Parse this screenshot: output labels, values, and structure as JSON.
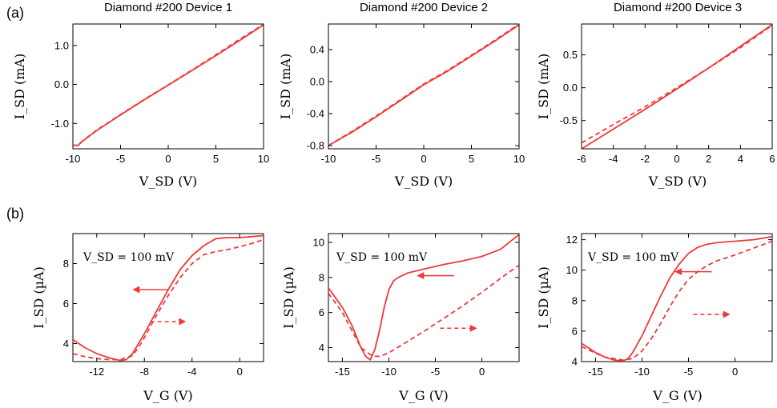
{
  "panel_labels": [
    "(a)",
    "(b)"
  ],
  "chart_data": [
    {
      "type": "line",
      "title": "Diamond #200 Device 1",
      "xlabel": "V_SD (V)",
      "ylabel": "I_SD (mA)",
      "xlim": [
        -10,
        10
      ],
      "ylim": [
        -1.65,
        1.55
      ],
      "xticks": [
        -10,
        -5,
        0,
        5,
        10
      ],
      "xtick_labels": [
        "-10",
        "-5",
        "0",
        "5",
        "10"
      ],
      "yticks": [
        -1,
        0,
        1
      ],
      "ytick_labels": [
        "-1.0",
        "0.0",
        "1.0"
      ],
      "series": [
        {
          "style": "solid",
          "x": [
            -10,
            -9.5,
            -9,
            -7.5,
            -5,
            -2.5,
            0,
            2.5,
            5,
            7.5,
            10
          ],
          "y": [
            -1.55,
            -1.57,
            -1.46,
            -1.18,
            -0.78,
            -0.39,
            -0.02,
            0.36,
            0.74,
            1.13,
            1.53
          ]
        },
        {
          "style": "dashed",
          "x": [
            -10,
            -9.5,
            -9,
            -7.5,
            -5,
            -2.5,
            0,
            2.5,
            5,
            7.5,
            10
          ],
          "y": [
            -1.56,
            -1.56,
            -1.45,
            -1.17,
            -0.77,
            -0.38,
            -0.01,
            0.37,
            0.76,
            1.16,
            1.54
          ]
        }
      ]
    },
    {
      "type": "line",
      "title": "Diamond #200 Device 2",
      "xlabel": "V_SD (V)",
      "ylabel": "I_SD (mA)",
      "xlim": [
        -10,
        10
      ],
      "ylim": [
        -0.84,
        0.72
      ],
      "xticks": [
        -10,
        -5,
        0,
        5,
        10
      ],
      "xtick_labels": [
        "-10",
        "-5",
        "0",
        "5",
        "10"
      ],
      "yticks": [
        -0.8,
        -0.4,
        0,
        0.4
      ],
      "ytick_labels": [
        "-0.8",
        "-0.4",
        "0.0",
        "0.4"
      ],
      "series": [
        {
          "style": "solid",
          "x": [
            -10,
            -7.5,
            -5,
            -2.5,
            0,
            2.5,
            5,
            7.5,
            10
          ],
          "y": [
            -0.8,
            -0.63,
            -0.44,
            -0.24,
            -0.04,
            0.13,
            0.32,
            0.51,
            0.71
          ]
        },
        {
          "style": "dashed",
          "x": [
            -10,
            -7.5,
            -5,
            -2.5,
            0,
            2.5,
            5,
            7.5,
            10
          ],
          "y": [
            -0.8,
            -0.62,
            -0.43,
            -0.23,
            -0.03,
            0.14,
            0.33,
            0.52,
            0.72
          ]
        }
      ]
    },
    {
      "type": "line",
      "title": "Diamond #200 Device 3",
      "xlabel": "V_SD (V)",
      "ylabel": "I_SD (mA)",
      "xlim": [
        -6,
        6
      ],
      "ylim": [
        -0.93,
        0.97
      ],
      "xticks": [
        -6,
        -4,
        -2,
        0,
        2,
        4,
        6
      ],
      "xtick_labels": [
        "-6",
        "-4",
        "-2",
        "0",
        "2",
        "4",
        "6"
      ],
      "yticks": [
        -0.5,
        0,
        0.5
      ],
      "ytick_labels": [
        "-0.5",
        "0.0",
        "0.5"
      ],
      "series": [
        {
          "style": "solid",
          "x": [
            -6,
            -4,
            -2,
            0,
            2,
            4,
            6
          ],
          "y": [
            -0.93,
            -0.63,
            -0.33,
            -0.02,
            0.3,
            0.63,
            0.96
          ]
        },
        {
          "style": "dashed",
          "x": [
            -6,
            -4,
            -2,
            0,
            2,
            4,
            6
          ],
          "y": [
            -0.84,
            -0.56,
            -0.29,
            0.0,
            0.3,
            0.61,
            0.95
          ]
        }
      ]
    },
    {
      "type": "line",
      "title": "",
      "xlabel": "V_G (V)",
      "ylabel": "I_SD (µA)",
      "annotation": "V_SD = 100 mV",
      "xlim": [
        -14,
        2
      ],
      "ylim": [
        3.1,
        9.5
      ],
      "xticks": [
        -12,
        -8,
        -4,
        0
      ],
      "xtick_labels": [
        "-12",
        "-8",
        "-4",
        "0"
      ],
      "yticks": [
        4,
        6,
        8
      ],
      "ytick_labels": [
        "4",
        "6",
        "8"
      ],
      "arrows": [
        {
          "direction": "left",
          "style": "solid",
          "x": [
            -6,
            -9
          ],
          "y": 6.7
        },
        {
          "direction": "right",
          "style": "dashed",
          "x": [
            -7.5,
            -4.5
          ],
          "y": 5.1
        }
      ],
      "series": [
        {
          "style": "solid",
          "x": [
            -14,
            -13,
            -12,
            -11,
            -10,
            -9.5,
            -9,
            -8,
            -7,
            -6,
            -5,
            -4,
            -3,
            -2,
            -1,
            0,
            1,
            2
          ],
          "y": [
            4.2,
            3.8,
            3.5,
            3.3,
            3.15,
            3.2,
            3.5,
            4.5,
            5.6,
            6.7,
            7.7,
            8.4,
            8.9,
            9.25,
            9.3,
            9.3,
            9.35,
            9.4
          ]
        },
        {
          "style": "dashed",
          "x": [
            -14,
            -13,
            -12,
            -11,
            -10,
            -9,
            -8.5,
            -8,
            -7,
            -6,
            -5,
            -4,
            -3,
            -2,
            -1,
            0,
            1,
            2
          ],
          "y": [
            3.5,
            3.35,
            3.25,
            3.2,
            3.2,
            3.4,
            3.8,
            4.3,
            5.4,
            6.4,
            7.3,
            8.0,
            8.45,
            8.6,
            8.7,
            8.85,
            9.0,
            9.2
          ]
        }
      ]
    },
    {
      "type": "line",
      "title": "",
      "xlabel": "V_G (V)",
      "ylabel": "I_SD (µA)",
      "annotation": "V_SD = 100 mV",
      "xlim": [
        -16.5,
        4
      ],
      "ylim": [
        3.2,
        10.5
      ],
      "xticks": [
        -15,
        -10,
        -5,
        0
      ],
      "xtick_labels": [
        "-15",
        "-10",
        "-5",
        "0"
      ],
      "yticks": [
        4,
        6,
        8,
        10
      ],
      "ytick_labels": [
        "4",
        "6",
        "8",
        "10"
      ],
      "arrows": [
        {
          "direction": "left",
          "style": "solid",
          "x": [
            -3,
            -7
          ],
          "y": 8.1
        },
        {
          "direction": "right",
          "style": "dashed",
          "x": [
            -4.5,
            -0.5
          ],
          "y": 5.1
        }
      ],
      "series": [
        {
          "style": "solid",
          "x": [
            -16.5,
            -15,
            -14,
            -13,
            -12.5,
            -12,
            -11.5,
            -11,
            -10.5,
            -10,
            -9.5,
            -9,
            -8,
            -6,
            -4,
            -2,
            0,
            2,
            4
          ],
          "y": [
            7.4,
            6.3,
            5.3,
            4.0,
            3.5,
            3.3,
            3.9,
            5.0,
            6.3,
            7.3,
            7.8,
            8.0,
            8.25,
            8.5,
            8.75,
            8.95,
            9.2,
            9.6,
            10.45
          ]
        },
        {
          "style": "dashed",
          "x": [
            -16.5,
            -15,
            -14,
            -13,
            -12,
            -11.5,
            -11,
            -10,
            -8,
            -6,
            -4,
            -2,
            0,
            2,
            4
          ],
          "y": [
            7.1,
            6.0,
            5.0,
            4.0,
            3.6,
            3.5,
            3.5,
            3.7,
            4.35,
            5.0,
            5.7,
            6.4,
            7.15,
            7.95,
            8.7
          ]
        }
      ]
    },
    {
      "type": "line",
      "title": "",
      "xlabel": "V_G (V)",
      "ylabel": "I_SD (µA)",
      "annotation": "V_SD = 100 mV",
      "xlim": [
        -16.5,
        4
      ],
      "ylim": [
        4.0,
        12.4
      ],
      "xticks": [
        -15,
        -10,
        -5,
        0
      ],
      "xtick_labels": [
        "-15",
        "-10",
        "-5",
        "0"
      ],
      "yticks": [
        4,
        6,
        8,
        10,
        12
      ],
      "ytick_labels": [
        "4",
        "6",
        "8",
        "10",
        "12"
      ],
      "arrows": [
        {
          "direction": "left",
          "style": "solid",
          "x": [
            -2.5,
            -6.5
          ],
          "y": 9.9
        },
        {
          "direction": "right",
          "style": "dashed",
          "x": [
            -4.5,
            -0.5
          ],
          "y": 7.1
        }
      ],
      "series": [
        {
          "style": "solid",
          "x": [
            -16.5,
            -15,
            -14,
            -13,
            -12,
            -11.5,
            -11,
            -10,
            -9,
            -8,
            -7,
            -6,
            -5,
            -4,
            -3,
            -2,
            0,
            2,
            4
          ],
          "y": [
            5.2,
            4.6,
            4.3,
            4.1,
            4.05,
            4.2,
            4.6,
            5.7,
            7.0,
            8.3,
            9.5,
            10.4,
            11.1,
            11.5,
            11.7,
            11.8,
            11.9,
            12.0,
            12.2
          ]
        },
        {
          "style": "dashed",
          "x": [
            -16.5,
            -15,
            -14,
            -13,
            -12,
            -11,
            -10,
            -9,
            -8,
            -7,
            -6,
            -5,
            -4,
            -3,
            -2,
            -1,
            0,
            2,
            4
          ],
          "y": [
            5.0,
            4.55,
            4.3,
            4.2,
            4.1,
            4.2,
            4.7,
            5.5,
            6.5,
            7.6,
            8.6,
            9.4,
            9.9,
            10.3,
            10.6,
            10.8,
            11.0,
            11.45,
            11.9
          ]
        }
      ]
    }
  ]
}
